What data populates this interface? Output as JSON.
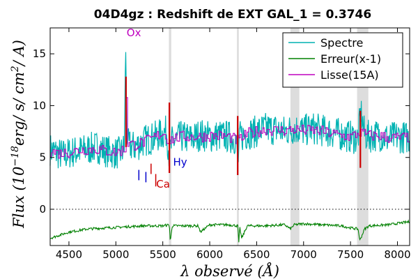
{
  "chart_data": {
    "type": "line",
    "title": "04D4gz : Redshift de EXT GAL_1 = 0.3746",
    "xlabel": "λ observé (Å)",
    "ylabel": "Flux (10^-18 erg/s/cm²/A)",
    "ylabel_parts": {
      "prefix": "Flux (10",
      "exp": "−18",
      "suffix": "erg/ s/ cm",
      "exp2": "2",
      "end": "/ A)"
    },
    "xlim": [
      4300,
      8130
    ],
    "ylim": [
      -3.5,
      17.5
    ],
    "xticks": [
      "4500",
      "5000",
      "5500",
      "6000",
      "6500",
      "7000",
      "7500",
      "8000"
    ],
    "xtick_values": [
      4500,
      5000,
      5500,
      6000,
      6500,
      7000,
      7500,
      8000
    ],
    "yticks": [
      "0",
      "5",
      "10",
      "15"
    ],
    "ytick_values": [
      0,
      5,
      10,
      15
    ],
    "zero_line": 0,
    "legend_position": "top-right",
    "series": [
      {
        "name": "Spectre",
        "color": "#00b2b2",
        "x": [
          4300,
          4380,
          4450,
          4520,
          4600,
          4700,
          4800,
          4900,
          5000,
          5060,
          5090,
          5105,
          5115,
          5130,
          5200,
          5300,
          5400,
          5480,
          5540,
          5570,
          5600,
          5700,
          5800,
          5900,
          6000,
          6100,
          6200,
          6280,
          6300,
          6320,
          6400,
          6500,
          6600,
          6700,
          6800,
          6900,
          7000,
          7100,
          7200,
          7300,
          7400,
          7500,
          7580,
          7610,
          7650,
          7700,
          7800,
          7900,
          8000,
          8130
        ],
        "y": [
          5.8,
          5.4,
          5.2,
          5.5,
          5.6,
          5.8,
          6.0,
          5.6,
          5.4,
          5.5,
          6.0,
          15.7,
          8.0,
          6.2,
          6.0,
          6.6,
          6.9,
          7.2,
          7.5,
          5.2,
          6.5,
          7.0,
          6.8,
          7.2,
          7.0,
          7.1,
          7.0,
          6.8,
          4.2,
          7.0,
          7.3,
          7.5,
          7.8,
          7.7,
          7.5,
          7.8,
          7.6,
          7.8,
          7.6,
          7.4,
          7.2,
          7.0,
          6.8,
          9.5,
          7.2,
          7.0,
          7.2,
          6.8,
          7.0,
          6.9
        ]
      },
      {
        "name": "Erreur(x-1)",
        "color": "#008000",
        "x": [
          4300,
          4500,
          4700,
          4900,
          5100,
          5300,
          5500,
          5570,
          5580,
          5600,
          5800,
          5880,
          5900,
          6000,
          6200,
          6300,
          6310,
          6320,
          6340,
          6400,
          6600,
          6800,
          6860,
          6900,
          7000,
          7200,
          7400,
          7500,
          7580,
          7600,
          7650,
          7700,
          7900,
          8130
        ],
        "y": [
          -2.8,
          -2.2,
          -1.9,
          -1.8,
          -1.7,
          -1.6,
          -1.6,
          -1.5,
          -3.2,
          -1.6,
          -1.6,
          -1.6,
          -2.2,
          -1.5,
          -1.5,
          -1.6,
          -3.3,
          -1.7,
          -2.8,
          -1.6,
          -1.6,
          -1.5,
          -1.9,
          -1.5,
          -1.4,
          -1.5,
          -1.6,
          -1.8,
          -1.9,
          -3.0,
          -1.9,
          -1.6,
          -1.5,
          -1.2
        ]
      },
      {
        "name": "Lisse(15A)",
        "color": "#bf00bf",
        "x": [
          4300,
          4400,
          4500,
          4600,
          4700,
          4800,
          4900,
          5000,
          5100,
          5108,
          5115,
          5200,
          5300,
          5400,
          5500,
          5560,
          5600,
          5700,
          5800,
          5900,
          6000,
          6100,
          6200,
          6300,
          6400,
          6500,
          6600,
          6700,
          6800,
          6900,
          7000,
          7100,
          7200,
          7300,
          7400,
          7500,
          7600,
          7700,
          7800,
          7900,
          8000,
          8130
        ],
        "y": [
          5.6,
          5.4,
          5.5,
          5.7,
          5.8,
          5.8,
          5.6,
          5.5,
          5.8,
          12.8,
          6.4,
          6.2,
          6.5,
          6.9,
          7.4,
          6.6,
          6.8,
          7.0,
          7.0,
          7.0,
          7.1,
          7.1,
          7.0,
          6.6,
          7.3,
          7.5,
          7.7,
          7.6,
          7.6,
          7.7,
          7.6,
          7.6,
          7.5,
          7.3,
          7.1,
          7.0,
          7.4,
          7.1,
          7.1,
          6.9,
          6.9,
          6.9
        ]
      }
    ],
    "annotations": [
      {
        "label": "Ox",
        "x": 5115,
        "y": 16.7,
        "color": "#bf00bf"
      },
      {
        "label": "Hy",
        "x": 5610,
        "y": 4.2,
        "color": "#0000cc"
      },
      {
        "label": "Ca",
        "x": 5430,
        "y": 2.1,
        "color": "#cc0000"
      }
    ],
    "line_markers": [
      {
        "x": 5245,
        "y0": 2.8,
        "y1": 3.8,
        "color": "#0000cc"
      },
      {
        "x": 5320,
        "y0": 2.6,
        "y1": 3.6,
        "color": "#0000cc"
      },
      {
        "x": 5375,
        "y0": 3.4,
        "y1": 4.4,
        "color": "#cc0000"
      },
      {
        "x": 5425,
        "y0": 2.2,
        "y1": 3.4,
        "color": "#cc0000"
      }
    ],
    "emission_spikes": [
      {
        "x": 5108,
        "y0": 6.0,
        "y1": 12.8,
        "color": "#cc0000"
      },
      {
        "x": 5570,
        "y0": 3.5,
        "y1": 10.3,
        "color": "#cc0000"
      },
      {
        "x": 6298,
        "y0": 3.3,
        "y1": 9.0,
        "color": "#cc0000"
      },
      {
        "x": 7605,
        "y0": 4.0,
        "y1": 9.5,
        "color": "#cc0000"
      }
    ],
    "sky_bands": [
      {
        "x0": 5565,
        "x1": 5590
      },
      {
        "x0": 6290,
        "x1": 6310
      },
      {
        "x0": 6860,
        "x1": 6955
      },
      {
        "x0": 7570,
        "x1": 7690
      }
    ]
  }
}
